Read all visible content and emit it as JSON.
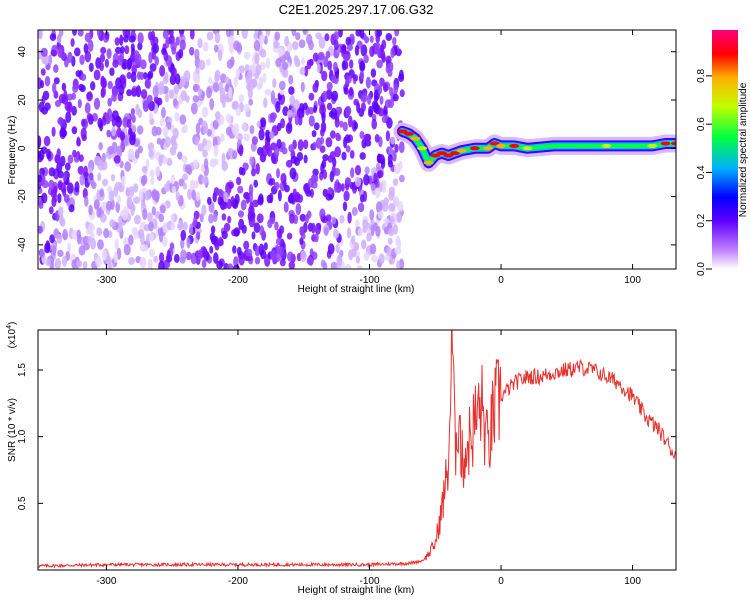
{
  "title": "C2E1.2025.297.17.06.G32",
  "chart_data": [
    {
      "type": "heatmap",
      "xlabel": "Height of straight line (km)",
      "ylabel": "Frequency (Hz)",
      "xlim": [
        -352,
        133
      ],
      "ylim": [
        -50,
        49
      ],
      "xticks": [
        -300,
        -200,
        -100,
        0,
        100
      ],
      "yticks": [
        -40,
        -20,
        0,
        20,
        40
      ],
      "colorbar": {
        "label": "Normalized spectral amplitude",
        "range": [
          0.0,
          0.99
        ],
        "ticks": [
          0.0,
          0.2,
          0.4,
          0.6,
          0.8
        ],
        "colors": [
          "#ffffff",
          "#8000ff",
          "#0000ff",
          "#00c0ff",
          "#00ff40",
          "#c0ff00",
          "#ffc000",
          "#ff0000",
          "#ff0080"
        ]
      },
      "noise_region_x": [
        -352,
        -75
      ],
      "ridge": {
        "points": [
          {
            "x": -75,
            "y": 7,
            "amp": 0.85
          },
          {
            "x": -70,
            "y": 6,
            "amp": 0.9
          },
          {
            "x": -65,
            "y": 4,
            "amp": 0.7
          },
          {
            "x": -60,
            "y": 0,
            "amp": 0.6
          },
          {
            "x": -55,
            "y": -6,
            "amp": 0.7
          },
          {
            "x": -50,
            "y": -3,
            "amp": 0.8
          },
          {
            "x": -45,
            "y": -2,
            "amp": 0.85
          },
          {
            "x": -40,
            "y": -3,
            "amp": 0.9
          },
          {
            "x": -35,
            "y": -2,
            "amp": 0.8
          },
          {
            "x": -30,
            "y": -1,
            "amp": 0.75
          },
          {
            "x": -20,
            "y": 0,
            "amp": 0.8
          },
          {
            "x": -10,
            "y": 0,
            "amp": 0.7
          },
          {
            "x": -5,
            "y": 2,
            "amp": 0.85
          },
          {
            "x": 0,
            "y": 1,
            "amp": 0.7
          },
          {
            "x": 10,
            "y": 1,
            "amp": 0.8
          },
          {
            "x": 20,
            "y": 0,
            "amp": 0.6
          },
          {
            "x": 40,
            "y": 1,
            "amp": 0.45
          },
          {
            "x": 60,
            "y": 1,
            "amp": 0.4
          },
          {
            "x": 80,
            "y": 1,
            "amp": 0.5
          },
          {
            "x": 100,
            "y": 1,
            "amp": 0.45
          },
          {
            "x": 115,
            "y": 1,
            "amp": 0.55
          },
          {
            "x": 125,
            "y": 2,
            "amp": 0.8
          },
          {
            "x": 133,
            "y": 2,
            "amp": 0.85
          }
        ]
      }
    },
    {
      "type": "line",
      "xlabel": "Height of straight line (km)",
      "ylabel": "SNR (10 * v/v)",
      "multiplier_label": "(x10",
      "multiplier_exp": "4",
      "xlim": [
        -352,
        133
      ],
      "ylim": [
        0,
        1.8
      ],
      "xticks": [
        -300,
        -200,
        -100,
        0,
        100
      ],
      "yticks": [
        0.5,
        1.0,
        1.5
      ],
      "ytick_labels": [
        "0.5",
        "1.0",
        "1.5"
      ],
      "series": [
        {
          "color": "#e8312f",
          "x": [
            -352,
            -300,
            -250,
            -200,
            -150,
            -100,
            -70,
            -60,
            -55,
            -50,
            -45,
            -40,
            -37,
            -35,
            -32,
            -30,
            -25,
            -20,
            -15,
            -10,
            -5,
            0,
            5,
            10,
            20,
            30,
            40,
            50,
            60,
            70,
            80,
            90,
            100,
            110,
            120,
            133
          ],
          "y": [
            0.03,
            0.04,
            0.04,
            0.04,
            0.04,
            0.04,
            0.05,
            0.07,
            0.12,
            0.2,
            0.45,
            0.8,
            1.75,
            0.9,
            1.25,
            0.8,
            0.95,
            1.1,
            1.25,
            0.9,
            1.2,
            1.3,
            1.35,
            1.4,
            1.45,
            1.45,
            1.48,
            1.5,
            1.52,
            1.5,
            1.45,
            1.4,
            1.3,
            1.15,
            1.05,
            0.85
          ]
        }
      ]
    }
  ]
}
